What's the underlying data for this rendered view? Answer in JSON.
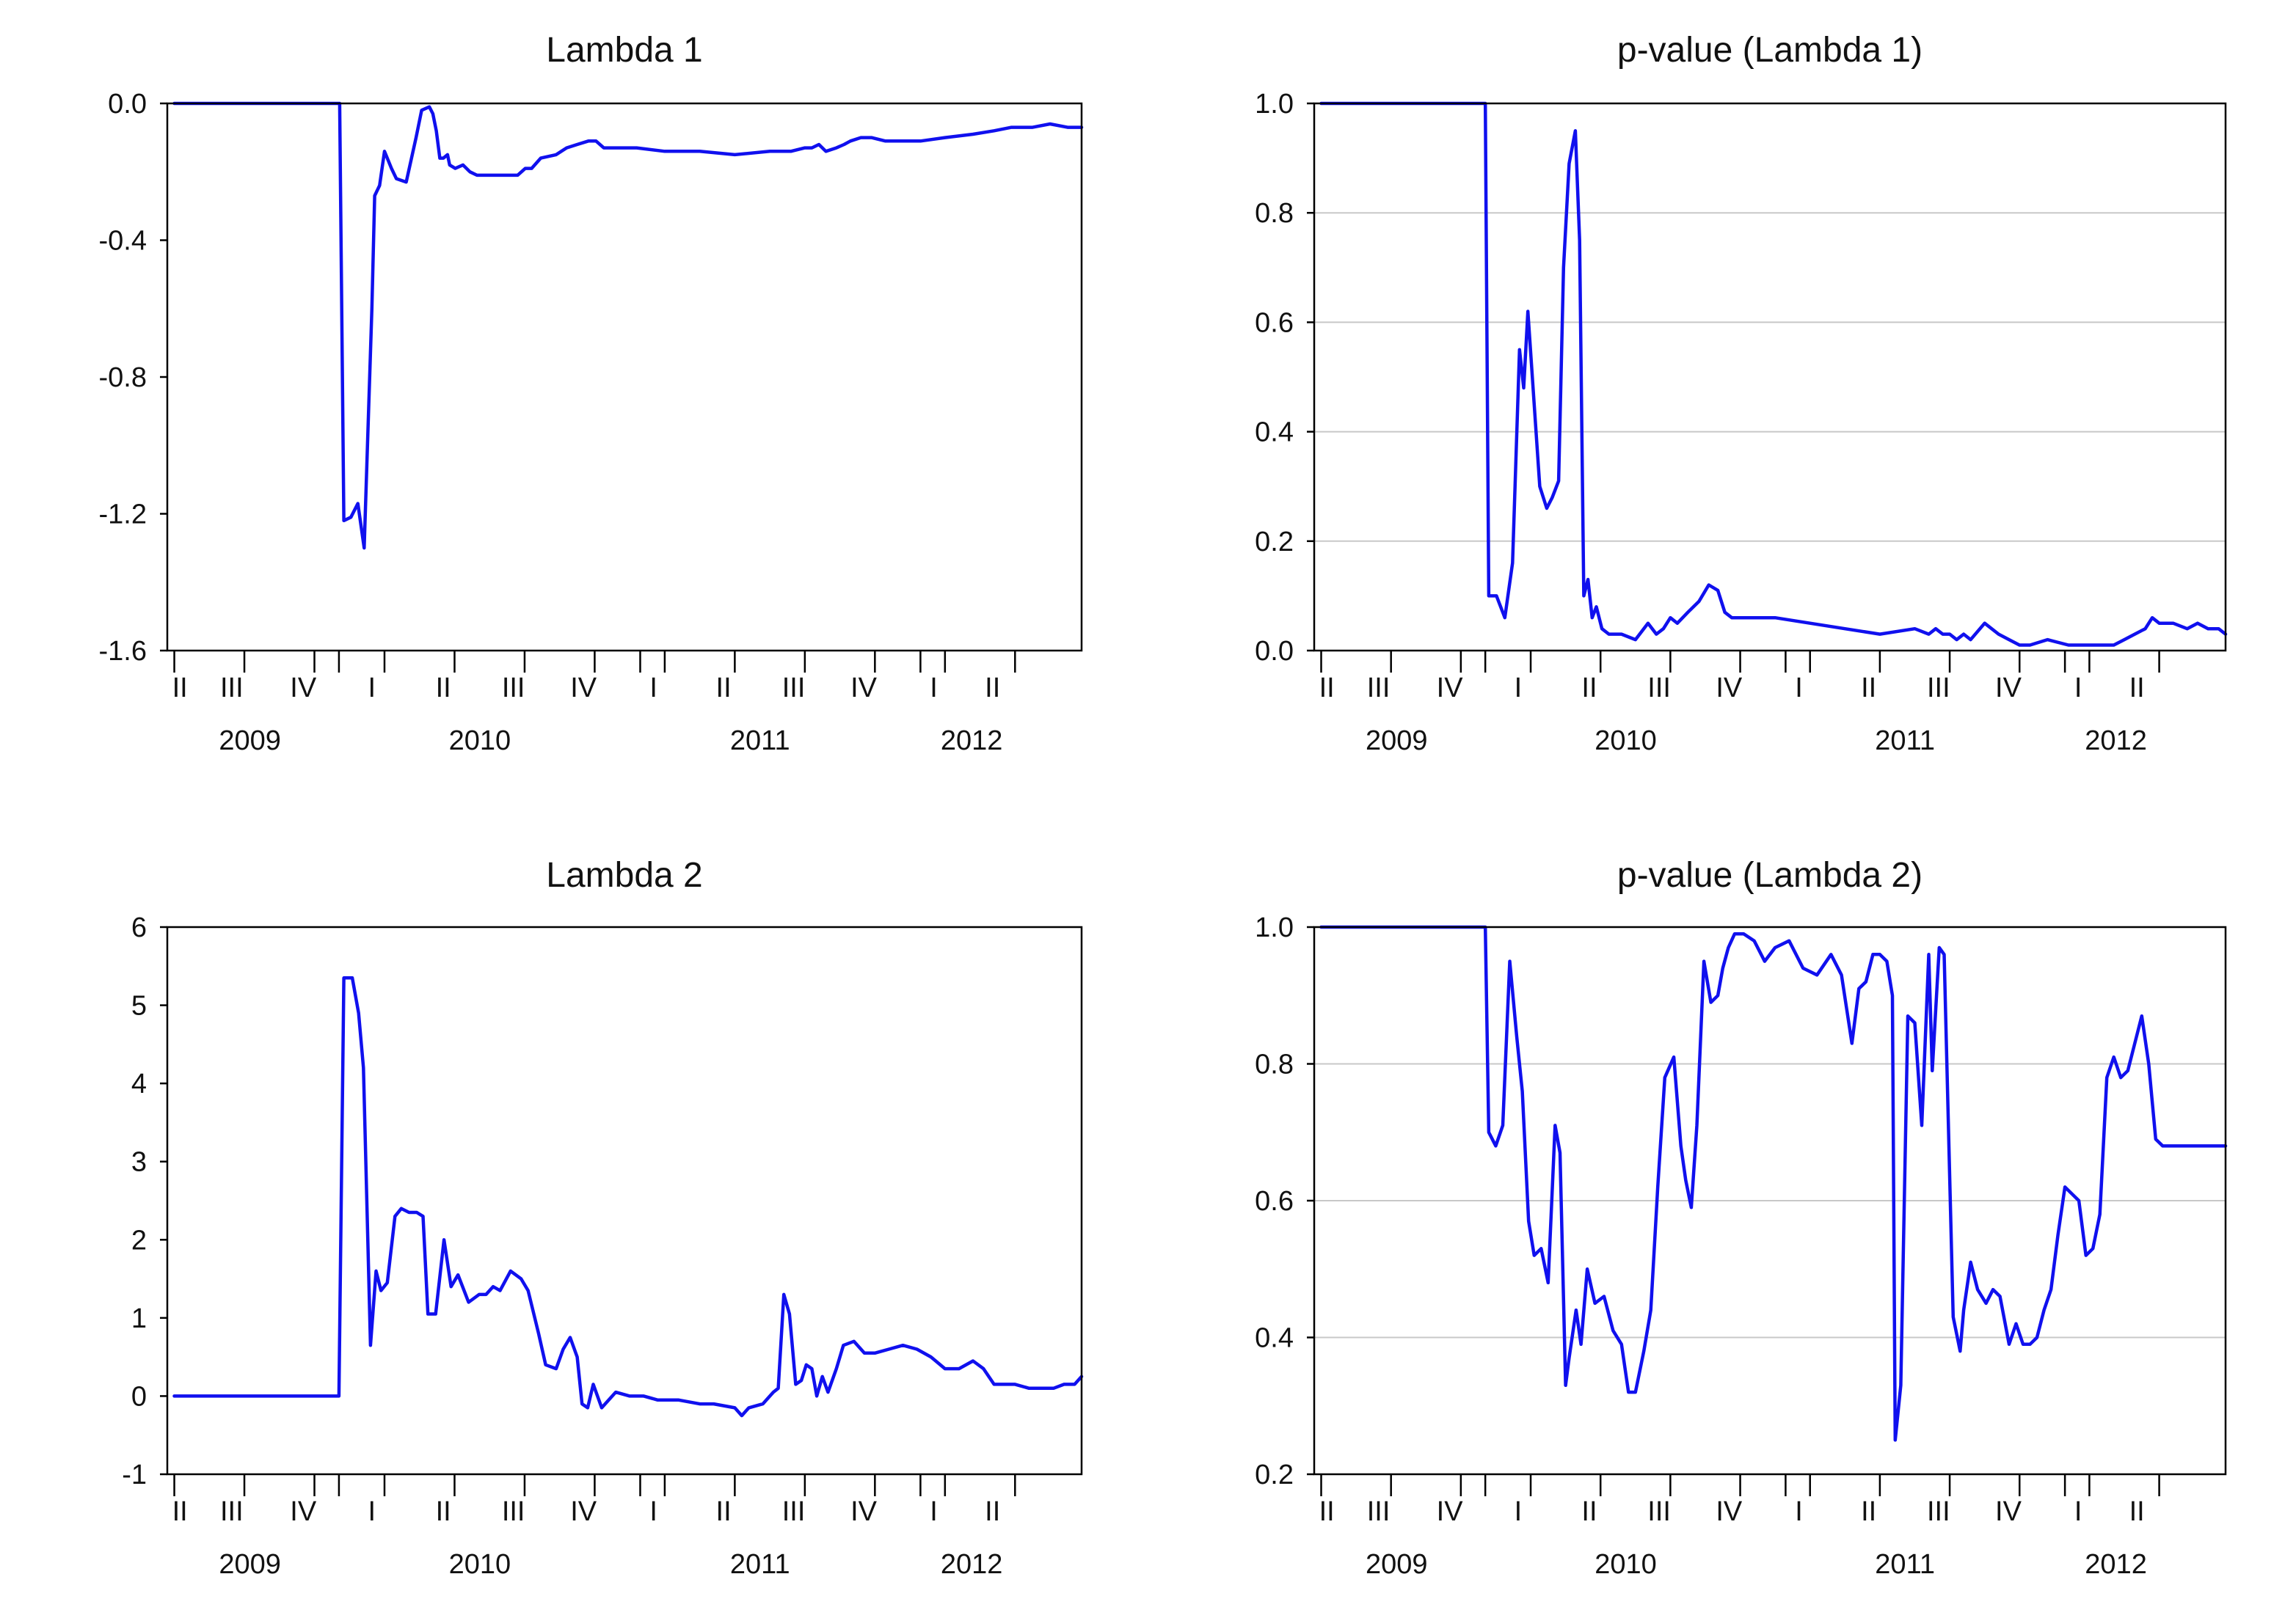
{
  "colors": {
    "series": "#1010ee",
    "grid": "#c8c8c8",
    "axis": "#000000"
  },
  "chart_data": [
    {
      "type": "line",
      "title": "Lambda 1",
      "xlabel": "",
      "ylabel": "",
      "ylim": [
        -1.6,
        0.0
      ],
      "yticks": [
        "0.0",
        "-0.4",
        "-0.8",
        "-1.2",
        "-1.6"
      ],
      "grid": false,
      "quarter_labels": [
        "II",
        "III",
        "IV",
        "I",
        "II",
        "III",
        "IV",
        "I",
        "II",
        "III",
        "IV",
        "I",
        "II"
      ],
      "year_labels": [
        "2009",
        "2010",
        "2011",
        "2012"
      ],
      "series": [
        {
          "x": [
            0,
            2.36,
            2.42,
            2.52,
            2.62,
            2.71,
            2.82,
            2.86,
            2.93,
            3.0,
            3.1,
            3.17,
            3.31,
            3.45,
            3.53,
            3.64,
            3.69,
            3.74,
            3.79,
            3.84,
            3.9,
            3.93,
            4.01,
            4.12,
            4.22,
            4.32,
            4.5,
            4.66,
            4.8,
            4.9,
            5.01,
            5.1,
            5.23,
            5.45,
            5.6,
            5.75,
            5.91,
            6.02,
            6.13,
            6.23,
            6.4,
            6.6,
            7.0,
            7.5,
            8.0,
            8.5,
            8.8,
            9.0,
            9.1,
            9.2,
            9.3,
            9.45,
            9.56,
            9.65,
            9.8,
            9.95,
            10.15,
            10.35,
            10.65,
            11.0,
            11.4,
            11.7,
            11.95,
            12.1,
            12.25,
            12.5,
            12.75,
            12.95
          ],
          "y": [
            0.0,
            0.0,
            -1.22,
            -1.21,
            -1.17,
            -1.3,
            -0.6,
            -0.27,
            -0.24,
            -0.14,
            -0.19,
            -0.22,
            -0.23,
            -0.1,
            -0.02,
            -0.01,
            -0.03,
            -0.08,
            -0.16,
            -0.16,
            -0.15,
            -0.18,
            -0.19,
            -0.18,
            -0.2,
            -0.21,
            -0.21,
            -0.21,
            -0.21,
            -0.21,
            -0.19,
            -0.19,
            -0.16,
            -0.15,
            -0.13,
            -0.12,
            -0.11,
            -0.11,
            -0.13,
            -0.13,
            -0.13,
            -0.13,
            -0.14,
            -0.14,
            -0.15,
            -0.14,
            -0.14,
            -0.13,
            -0.13,
            -0.12,
            -0.14,
            -0.13,
            -0.12,
            -0.11,
            -0.1,
            -0.1,
            -0.11,
            -0.11,
            -0.11,
            -0.1,
            -0.09,
            -0.08,
            -0.07,
            -0.07,
            -0.07,
            -0.06,
            -0.07,
            -0.07
          ]
        }
      ]
    },
    {
      "type": "line",
      "title": "p-value (Lambda 1)",
      "xlabel": "",
      "ylabel": "",
      "ylim": [
        0.0,
        1.0
      ],
      "yticks": [
        "1.0",
        "0.8",
        "0.6",
        "0.4",
        "0.2",
        "0.0"
      ],
      "grid": true,
      "quarter_labels": [
        "II",
        "III",
        "IV",
        "I",
        "II",
        "III",
        "IV",
        "I",
        "II",
        "III",
        "IV",
        "I",
        "II"
      ],
      "year_labels": [
        "2009",
        "2010",
        "2011",
        "2012"
      ],
      "series": [
        {
          "x": [
            0,
            2.35,
            2.4,
            2.51,
            2.63,
            2.74,
            2.84,
            2.9,
            2.96,
            3.05,
            3.13,
            3.23,
            3.31,
            3.4,
            3.47,
            3.55,
            3.64,
            3.7,
            3.76,
            3.82,
            3.88,
            3.94,
            4.02,
            4.12,
            4.3,
            4.5,
            4.68,
            4.8,
            4.9,
            5.0,
            5.1,
            5.25,
            5.41,
            5.55,
            5.68,
            5.78,
            5.88,
            6.1,
            6.5,
            7.0,
            7.5,
            8.0,
            8.5,
            8.7,
            8.8,
            8.9,
            9.0,
            9.1,
            9.2,
            9.3,
            9.5,
            9.7,
            9.85,
            10.0,
            10.15,
            10.4,
            10.7,
            11.0,
            11.2,
            11.35,
            11.5,
            11.65,
            11.8,
            11.9,
            12.0,
            12.2,
            12.4,
            12.55,
            12.7,
            12.85,
            12.95
          ],
          "y": [
            1.0,
            1.0,
            0.1,
            0.1,
            0.06,
            0.16,
            0.55,
            0.48,
            0.62,
            0.45,
            0.3,
            0.26,
            0.28,
            0.31,
            0.7,
            0.89,
            0.95,
            0.75,
            0.1,
            0.13,
            0.06,
            0.08,
            0.04,
            0.03,
            0.03,
            0.02,
            0.05,
            0.03,
            0.04,
            0.06,
            0.05,
            0.07,
            0.09,
            0.12,
            0.11,
            0.07,
            0.06,
            0.06,
            0.06,
            0.05,
            0.04,
            0.03,
            0.04,
            0.03,
            0.04,
            0.03,
            0.03,
            0.02,
            0.03,
            0.02,
            0.05,
            0.03,
            0.02,
            0.01,
            0.01,
            0.02,
            0.01,
            0.01,
            0.01,
            0.01,
            0.02,
            0.03,
            0.04,
            0.06,
            0.05,
            0.05,
            0.04,
            0.05,
            0.04,
            0.04,
            0.03
          ]
        }
      ]
    },
    {
      "type": "line",
      "title": "Lambda 2",
      "xlabel": "",
      "ylabel": "",
      "ylim": [
        -1,
        6
      ],
      "yticks": [
        "6",
        "5",
        "4",
        "3",
        "2",
        "1",
        "0",
        "-1"
      ],
      "grid": false,
      "quarter_labels": [
        "II",
        "III",
        "IV",
        "I",
        "II",
        "III",
        "IV",
        "I",
        "II",
        "III",
        "IV",
        "I",
        "II"
      ],
      "year_labels": [
        "2009",
        "2010",
        "2011",
        "2012"
      ],
      "series": [
        {
          "x": [
            0,
            2.35,
            2.42,
            2.54,
            2.63,
            2.7,
            2.8,
            2.88,
            2.95,
            3.04,
            3.15,
            3.24,
            3.35,
            3.46,
            3.55,
            3.62,
            3.73,
            3.85,
            3.95,
            4.05,
            4.2,
            4.35,
            4.45,
            4.55,
            4.65,
            4.8,
            4.95,
            5.05,
            5.2,
            5.3,
            5.45,
            5.55,
            5.65,
            5.75,
            5.82,
            5.9,
            5.98,
            6.1,
            6.3,
            6.5,
            6.7,
            6.9,
            7.2,
            7.5,
            7.7,
            8.0,
            8.1,
            8.2,
            8.4,
            8.55,
            8.62,
            8.7,
            8.78,
            8.87,
            8.95,
            9.02,
            9.1,
            9.17,
            9.25,
            9.33,
            9.45,
            9.55,
            9.7,
            9.85,
            10.0,
            10.2,
            10.4,
            10.6,
            10.8,
            11.0,
            11.2,
            11.4,
            11.55,
            11.7,
            11.85,
            12.0,
            12.2,
            12.4,
            12.55,
            12.7,
            12.85,
            12.95
          ],
          "y": [
            0.0,
            0.0,
            5.35,
            5.35,
            4.9,
            4.2,
            0.65,
            1.6,
            1.35,
            1.45,
            2.3,
            2.4,
            2.35,
            2.35,
            2.3,
            1.05,
            1.05,
            2.0,
            1.4,
            1.55,
            1.2,
            1.3,
            1.3,
            1.4,
            1.35,
            1.6,
            1.5,
            1.35,
            0.8,
            0.4,
            0.35,
            0.6,
            0.75,
            0.5,
            -0.1,
            -0.15,
            0.15,
            -0.15,
            0.05,
            0.0,
            0.0,
            -0.05,
            -0.05,
            -0.1,
            -0.1,
            -0.15,
            -0.25,
            -0.15,
            -0.1,
            0.05,
            0.1,
            1.3,
            1.05,
            0.15,
            0.2,
            0.4,
            0.35,
            0.0,
            0.25,
            0.05,
            0.35,
            0.65,
            0.7,
            0.55,
            0.55,
            0.6,
            0.65,
            0.6,
            0.5,
            0.35,
            0.35,
            0.45,
            0.35,
            0.15,
            0.15,
            0.15,
            0.1,
            0.1,
            0.1,
            0.15,
            0.15,
            0.25
          ]
        }
      ]
    },
    {
      "type": "line",
      "title": "p-value (Lambda 2)",
      "xlabel": "",
      "ylabel": "",
      "ylim": [
        0.2,
        1.0
      ],
      "yticks": [
        "1.0",
        "0.8",
        "0.6",
        "0.4",
        "0.2"
      ],
      "grid": true,
      "quarter_labels": [
        "II",
        "III",
        "IV",
        "I",
        "II",
        "III",
        "IV",
        "I",
        "II",
        "III",
        "IV",
        "I",
        "II"
      ],
      "year_labels": [
        "2009",
        "2010",
        "2011",
        "2012"
      ],
      "series": [
        {
          "x": [
            0,
            2.35,
            2.4,
            2.5,
            2.6,
            2.7,
            2.8,
            2.88,
            2.97,
            3.05,
            3.15,
            3.25,
            3.35,
            3.42,
            3.5,
            3.55,
            3.65,
            3.72,
            3.81,
            3.92,
            4.05,
            4.18,
            4.3,
            4.4,
            4.5,
            4.62,
            4.72,
            4.82,
            4.92,
            5.05,
            5.15,
            5.22,
            5.3,
            5.38,
            5.48,
            5.58,
            5.68,
            5.75,
            5.83,
            5.92,
            6.05,
            6.2,
            6.35,
            6.5,
            6.7,
            6.9,
            7.1,
            7.3,
            7.45,
            7.6,
            7.7,
            7.8,
            7.9,
            8.0,
            8.1,
            8.18,
            8.22,
            8.3,
            8.4,
            8.5,
            8.6,
            8.7,
            8.75,
            8.85,
            8.92,
            9.05,
            9.15,
            9.2,
            9.3,
            9.4,
            9.52,
            9.62,
            9.72,
            9.85,
            9.95,
            10.05,
            10.15,
            10.25,
            10.35,
            10.45,
            10.55,
            10.65,
            10.75,
            10.85,
            10.95,
            11.05,
            11.15,
            11.25,
            11.35,
            11.45,
            11.55,
            11.65,
            11.75,
            11.85,
            11.95,
            12.05,
            12.15,
            12.25,
            12.35,
            12.45,
            12.55,
            12.65,
            12.75,
            12.85,
            12.95
          ],
          "y": [
            1.0,
            1.0,
            0.7,
            0.68,
            0.71,
            0.95,
            0.84,
            0.76,
            0.57,
            0.52,
            0.53,
            0.48,
            0.71,
            0.67,
            0.33,
            0.37,
            0.44,
            0.39,
            0.5,
            0.45,
            0.46,
            0.41,
            0.39,
            0.32,
            0.32,
            0.38,
            0.44,
            0.62,
            0.78,
            0.81,
            0.68,
            0.63,
            0.59,
            0.71,
            0.95,
            0.89,
            0.9,
            0.94,
            0.97,
            0.99,
            0.99,
            0.98,
            0.95,
            0.97,
            0.98,
            0.94,
            0.93,
            0.96,
            0.93,
            0.83,
            0.91,
            0.92,
            0.96,
            0.96,
            0.95,
            0.9,
            0.25,
            0.33,
            0.87,
            0.86,
            0.71,
            0.96,
            0.79,
            0.97,
            0.96,
            0.43,
            0.38,
            0.44,
            0.51,
            0.47,
            0.45,
            0.47,
            0.46,
            0.39,
            0.42,
            0.39,
            0.39,
            0.4,
            0.44,
            0.47,
            0.55,
            0.62,
            0.61,
            0.6,
            0.52,
            0.53,
            0.58,
            0.78,
            0.81,
            0.78,
            0.79,
            0.83,
            0.87,
            0.8,
            0.69,
            0.68,
            0.68,
            0.68,
            0.68,
            0.68,
            0.68,
            0.68,
            0.68,
            0.68,
            0.68
          ]
        }
      ]
    }
  ]
}
